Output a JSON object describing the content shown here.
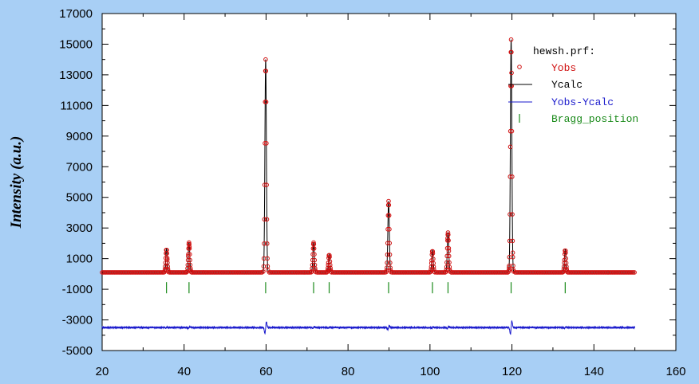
{
  "chart_data": {
    "type": "scatter",
    "title": "",
    "xlabel": "",
    "ylabel": "Intensity (a.u.)",
    "xlim": [
      20,
      160
    ],
    "ylim": [
      -5000,
      17000
    ],
    "xticks": [
      20,
      40,
      60,
      80,
      100,
      120,
      140,
      160
    ],
    "yticks": [
      -5000,
      -3000,
      -1000,
      1000,
      3000,
      5000,
      7000,
      9000,
      11000,
      13000,
      15000,
      17000
    ],
    "legend": {
      "title": "hewsh.prf:",
      "placement": "top-right",
      "entries": [
        {
          "label": "Yobs",
          "color": "#d01010",
          "marker": "open-circle"
        },
        {
          "label": "Ycalc",
          "color": "#000000",
          "marker": "line"
        },
        {
          "label": "Yobs-Ycalc",
          "color": "#1a1acc",
          "marker": "line"
        },
        {
          "label": "Bragg_position",
          "color": "#1a8a1a",
          "marker": "tick"
        }
      ]
    },
    "x_range": [
      20,
      150
    ],
    "background": 100,
    "peaks": [
      {
        "x": 35.7,
        "height": 1650
      },
      {
        "x": 41.2,
        "height": 2050
      },
      {
        "x": 59.9,
        "height": 14000
      },
      {
        "x": 71.6,
        "height": 2050
      },
      {
        "x": 75.4,
        "height": 1280
      },
      {
        "x": 89.9,
        "height": 4750
      },
      {
        "x": 100.6,
        "height": 1550
      },
      {
        "x": 104.4,
        "height": 2700
      },
      {
        "x": 119.8,
        "height": 15300
      },
      {
        "x": 133.0,
        "height": 1600
      }
    ],
    "bragg_positions": [
      35.7,
      41.2,
      59.9,
      71.6,
      75.4,
      89.9,
      100.6,
      104.4,
      119.8,
      133.0
    ],
    "bragg_marker_y": -900,
    "difference_baseline": -3500,
    "colors": {
      "background": "#a8cff5",
      "plot_area": "#ffffff",
      "yobs": "#d01010",
      "ycalc": "#000000",
      "diff": "#1a1acc",
      "bragg": "#1a8a1a"
    }
  }
}
